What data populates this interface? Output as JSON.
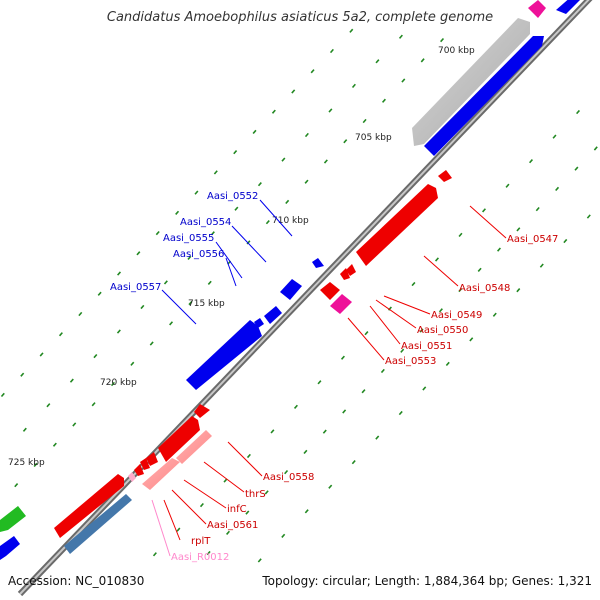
{
  "title": "Candidatus Amoebophilus asiaticus 5a2, complete genome",
  "footer": {
    "accession": "Accession: NC_010830",
    "topology": "Topology: circular; Length: 1,884,364 bp; Genes: 1,321"
  },
  "ticks": {
    "t700": "700 kbp",
    "t705": "705 kbp",
    "t710": "710 kbp",
    "t715": "715 kbp",
    "t720": "720 kbp",
    "t725": "725 kbp"
  },
  "genes_forward": {
    "g0552": "Aasi_0552",
    "g0554": "Aasi_0554",
    "g0555": "Aasi_0555",
    "g0556": "Aasi_0556",
    "g0557": "Aasi_0557"
  },
  "genes_reverse": {
    "g0547": "Aasi_0547",
    "g0548": "Aasi_0548",
    "g0549": "Aasi_0549",
    "g0550": "Aasi_0550",
    "g0551": "Aasi_0551",
    "g0553": "Aasi_0553",
    "g0558": "Aasi_0558",
    "thrS": "thrS",
    "infC": "infC",
    "g0561": "Aasi_0561",
    "rplT": "rplT",
    "rna0012": "Aasi_R0012"
  },
  "colors": {
    "forward": "#0000ee",
    "reverse": "#ee0000",
    "rna": "#ee1199",
    "rna_label": "#ff88cc",
    "other": "#22bb22",
    "steel": "#4477aa",
    "grey": "#b8b8b8",
    "dots": "#228822",
    "backbone": "#888888"
  }
}
